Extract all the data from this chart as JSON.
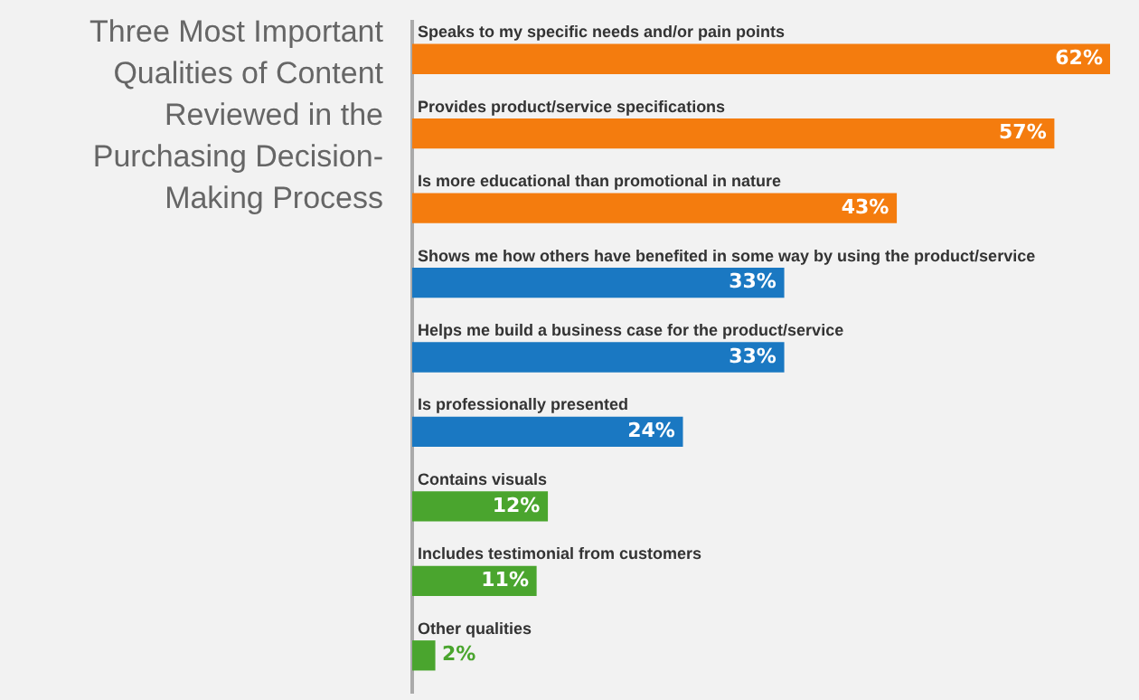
{
  "chart_data": {
    "type": "bar",
    "orientation": "horizontal",
    "title": "Three Most Important Qualities of Content Reviewed in the Purchasing Decision-Making Process",
    "categories": [
      "Speaks to my specific needs and/or pain points",
      "Provides product/service specifications",
      "Is more educational than promotional in nature",
      "Shows me how others have benefited in some way by using the product/service",
      "Helps me build a business case for the product/service",
      "Is professionally presented",
      "Contains visuals",
      "Includes testimonial from customers",
      "Other qualities"
    ],
    "values": [
      62,
      57,
      43,
      33,
      33,
      24,
      12,
      11,
      2
    ],
    "value_labels": [
      "62%",
      "57%",
      "43%",
      "33%",
      "33%",
      "24%",
      "12%",
      "11%",
      "2%"
    ],
    "colors": [
      "#f47c0e",
      "#f47c0e",
      "#f47c0e",
      "#1a78c2",
      "#1a78c2",
      "#1a78c2",
      "#4aa52e",
      "#4aa52e",
      "#4aa52e"
    ],
    "legend": false,
    "grid": false
  }
}
